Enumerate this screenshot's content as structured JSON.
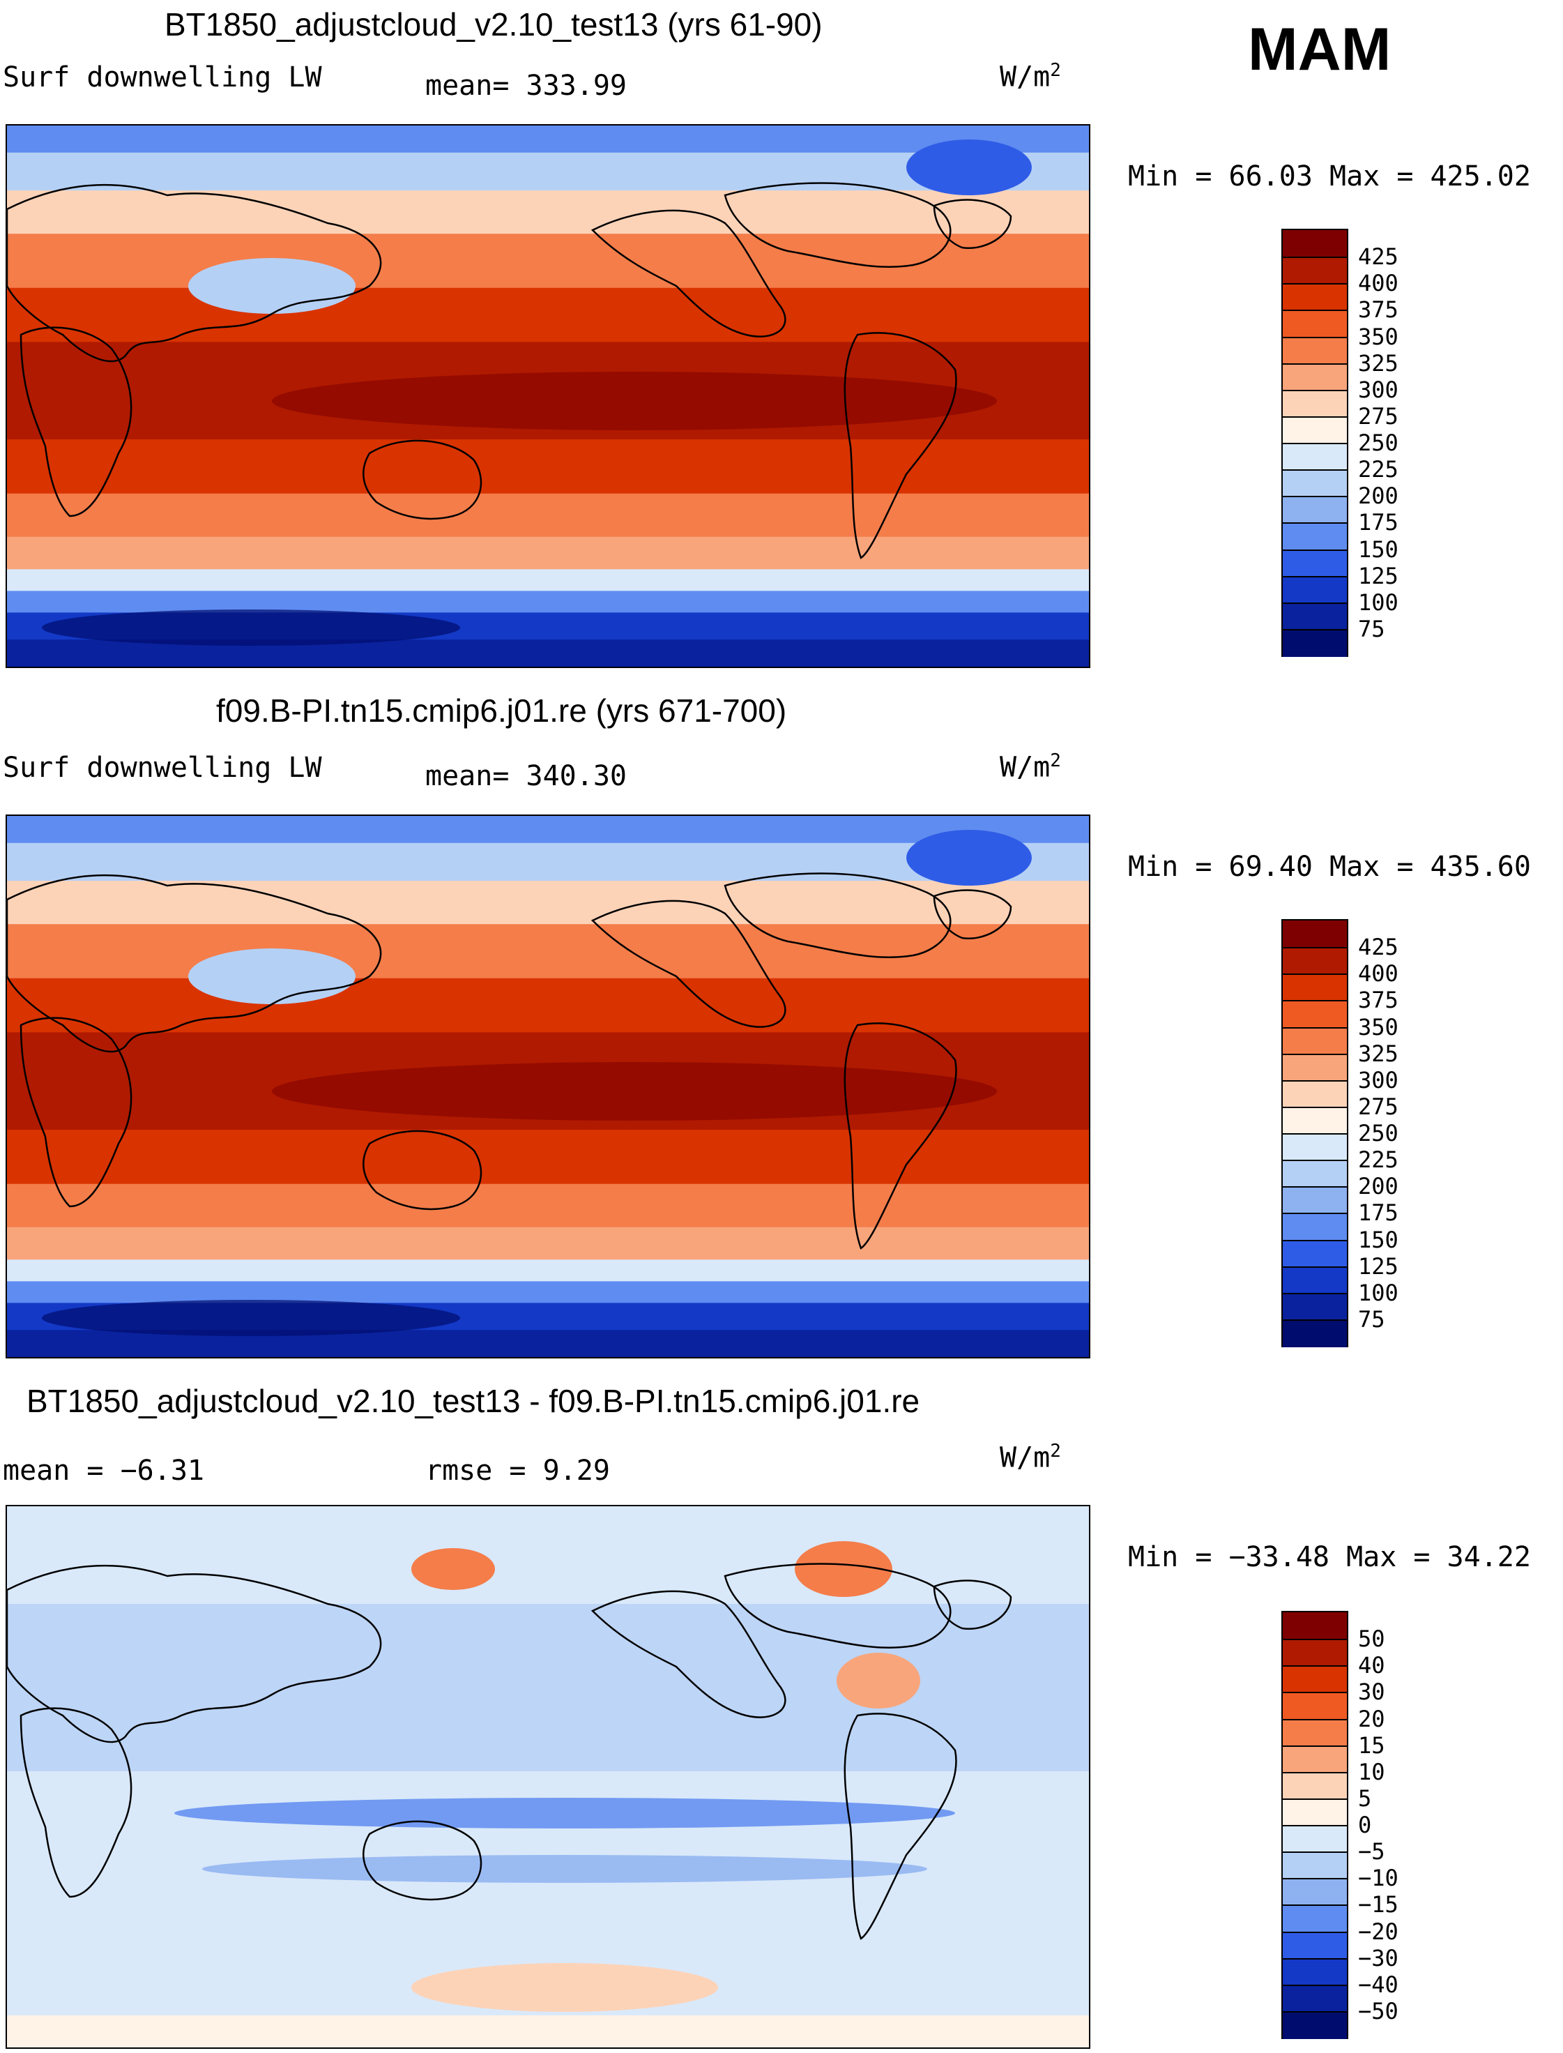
{
  "season": "MAM",
  "panels": [
    {
      "title": "BT1850_adjustcloud_v2.10_test13 (yrs 61-90)",
      "left_label": "Surf downwelling LW",
      "mid_label": "mean= 333.99",
      "units_base": "W/m",
      "units_exp": "2",
      "minmax": "Min =   66.03 Max = 425.02",
      "colorbar": {
        "labels": [
          "425",
          "400",
          "375",
          "350",
          "325",
          "300",
          "275",
          "250",
          "225",
          "200",
          "175",
          "150",
          "125",
          "100",
          "75"
        ],
        "colors": [
          "#7f0000",
          "#b01a00",
          "#d93300",
          "#ef5a23",
          "#f47d4a",
          "#f8a57c",
          "#fdd3b8",
          "#fff2e7",
          "#d9e9fa",
          "#b5d0f5",
          "#8eb2f0",
          "#5f8cf0",
          "#2f5ce6",
          "#1339c6",
          "#0a229d",
          "#000c6e"
        ]
      },
      "map_kind": "abs"
    },
    {
      "title": "f09.B-PI.tn15.cmip6.j01.re (yrs 671-700)",
      "left_label": "Surf downwelling LW",
      "mid_label": "mean= 340.30",
      "units_base": "W/m",
      "units_exp": "2",
      "minmax": "Min =   69.40 Max = 435.60",
      "colorbar": {
        "labels": [
          "425",
          "400",
          "375",
          "350",
          "325",
          "300",
          "275",
          "250",
          "225",
          "200",
          "175",
          "150",
          "125",
          "100",
          "75"
        ],
        "colors": [
          "#7f0000",
          "#b01a00",
          "#d93300",
          "#ef5a23",
          "#f47d4a",
          "#f8a57c",
          "#fdd3b8",
          "#fff2e7",
          "#d9e9fa",
          "#b5d0f5",
          "#8eb2f0",
          "#5f8cf0",
          "#2f5ce6",
          "#1339c6",
          "#0a229d",
          "#000c6e"
        ]
      },
      "map_kind": "abs"
    },
    {
      "title": "BT1850_adjustcloud_v2.10_test13 - f09.B-PI.tn15.cmip6.j01.re",
      "left_label": "mean =   −6.31",
      "mid_label": "rmse =    9.29",
      "units_base": "W/m",
      "units_exp": "2",
      "minmax": "Min = −33.48 Max =  34.22",
      "colorbar": {
        "labels": [
          "50",
          "40",
          "30",
          "20",
          "15",
          "10",
          "5",
          "0",
          "−5",
          "−10",
          "−15",
          "−20",
          "−30",
          "−40",
          "−50"
        ],
        "colors": [
          "#7f0000",
          "#b01a00",
          "#d93300",
          "#ef5a23",
          "#f47d4a",
          "#f8a57c",
          "#fdd3b8",
          "#fff2e7",
          "#d9e9fa",
          "#b5d0f5",
          "#8eb2f0",
          "#5f8cf0",
          "#2f5ce6",
          "#1339c6",
          "#0a229d",
          "#000c6e"
        ]
      },
      "map_kind": "diff"
    }
  ]
}
